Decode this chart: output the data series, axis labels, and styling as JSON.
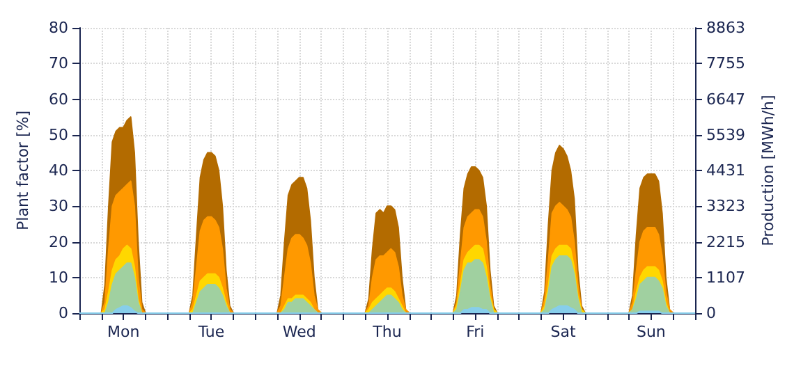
{
  "chart_data": {
    "type": "area",
    "ylabel": "Plant factor [%]",
    "y2label": "Production [MWh/h]",
    "categories": [
      null,
      null,
      null,
      null,
      null,
      null,
      null,
      null,
      null,
      null,
      null,
      null,
      "Mon",
      null,
      null,
      null,
      null,
      null,
      null,
      null,
      null,
      null,
      null,
      null,
      null,
      null,
      null,
      null,
      null,
      null,
      null,
      null,
      null,
      null,
      null,
      null,
      "Tue",
      null,
      null,
      null,
      null,
      null,
      null,
      null,
      null,
      null,
      null,
      null,
      null,
      null,
      null,
      null,
      null,
      null,
      null,
      null,
      null,
      null,
      null,
      null,
      "Wed",
      null,
      null,
      null,
      null,
      null,
      null,
      null,
      null,
      null,
      null,
      null,
      null,
      null,
      null,
      null,
      null,
      null,
      null,
      null,
      null,
      null,
      null,
      null,
      "Thu",
      null,
      null,
      null,
      null,
      null,
      null,
      null,
      null,
      null,
      null,
      null,
      null,
      null,
      null,
      null,
      null,
      null,
      null,
      null,
      null,
      null,
      null,
      null,
      "Fri",
      null,
      null,
      null,
      null,
      null,
      null,
      null,
      null,
      null,
      null,
      null,
      null,
      null,
      null,
      null,
      null,
      null,
      null,
      null,
      null,
      null,
      null,
      null,
      "Sat",
      null,
      null,
      null,
      null,
      null,
      null,
      null,
      null,
      null,
      null,
      null,
      null,
      null,
      null,
      null,
      null,
      null,
      null,
      null,
      null,
      null,
      null,
      null,
      "Sun",
      null,
      null,
      null,
      null,
      null,
      null,
      null,
      null,
      null,
      null,
      null,
      null
    ],
    "ylim": [
      0,
      80
    ],
    "yticks": [
      0,
      10,
      20,
      30,
      40,
      50,
      60,
      70,
      80
    ],
    "y2lim": [
      0,
      8863
    ],
    "y2ticks": [
      0,
      1107,
      2215,
      3323,
      4431,
      5539,
      6647,
      7755,
      8863
    ],
    "grid": true,
    "marker": "none",
    "line_style": "solid",
    "series": [
      {
        "color": "#b36b00",
        "values": [
          0,
          0,
          0,
          0,
          0,
          0,
          0,
          8,
          30,
          48,
          51,
          52,
          52,
          54,
          55,
          45,
          20,
          3,
          0,
          0,
          0,
          0,
          0,
          0,
          0,
          0,
          0,
          0,
          0,
          0,
          0,
          5,
          22,
          38,
          43,
          45,
          45,
          44,
          40,
          30,
          12,
          2,
          0,
          0,
          0,
          0,
          0,
          0,
          0,
          0,
          0,
          0,
          0,
          0,
          0,
          5,
          20,
          33,
          36,
          37,
          38,
          38,
          35,
          26,
          10,
          1,
          0,
          0,
          0,
          0,
          0,
          0,
          0,
          0,
          0,
          0,
          0,
          0,
          0,
          4,
          18,
          28,
          29,
          28,
          30,
          30,
          29,
          24,
          10,
          1,
          0,
          0,
          0,
          0,
          0,
          0,
          0,
          0,
          0,
          0,
          0,
          0,
          0,
          5,
          22,
          35,
          39,
          41,
          41,
          40,
          38,
          30,
          12,
          2,
          0,
          0,
          0,
          0,
          0,
          0,
          0,
          0,
          0,
          0,
          0,
          0,
          0,
          6,
          25,
          40,
          45,
          47,
          46,
          44,
          40,
          32,
          12,
          2,
          0,
          0,
          0,
          0,
          0,
          0,
          0,
          0,
          0,
          0,
          0,
          0,
          0,
          5,
          22,
          35,
          38,
          39,
          39,
          39,
          37,
          28,
          10,
          1,
          0,
          0,
          0,
          0,
          0,
          0,
          0
        ]
      },
      {
        "color": "#ff9900",
        "values": [
          0,
          0,
          0,
          0,
          0,
          0,
          0,
          3,
          18,
          30,
          33,
          34,
          35,
          36,
          37,
          30,
          10,
          1,
          0,
          0,
          0,
          0,
          0,
          0,
          0,
          0,
          0,
          0,
          0,
          0,
          0,
          3,
          13,
          23,
          26,
          27,
          27,
          26,
          24,
          18,
          7,
          1,
          0,
          0,
          0,
          0,
          0,
          0,
          0,
          0,
          0,
          0,
          0,
          0,
          0,
          2,
          10,
          18,
          21,
          22,
          22,
          21,
          19,
          14,
          5,
          1,
          0,
          0,
          0,
          0,
          0,
          0,
          0,
          0,
          0,
          0,
          0,
          0,
          0,
          2,
          10,
          15,
          16,
          16,
          17,
          18,
          17,
          13,
          5,
          1,
          0,
          0,
          0,
          0,
          0,
          0,
          0,
          0,
          0,
          0,
          0,
          0,
          0,
          3,
          14,
          24,
          27,
          28,
          29,
          29,
          27,
          20,
          8,
          1,
          0,
          0,
          0,
          0,
          0,
          0,
          0,
          0,
          0,
          0,
          0,
          0,
          0,
          4,
          15,
          28,
          30,
          31,
          30,
          29,
          27,
          20,
          8,
          1,
          0,
          0,
          0,
          0,
          0,
          0,
          0,
          0,
          0,
          0,
          0,
          0,
          0,
          3,
          12,
          20,
          23,
          24,
          24,
          24,
          22,
          16,
          6,
          1,
          0,
          0,
          0,
          0,
          0,
          0,
          0
        ]
      },
      {
        "color": "#ffd700",
        "values": [
          0,
          0,
          0,
          0,
          0,
          0,
          0,
          1,
          6,
          12,
          15,
          16,
          18,
          19,
          18,
          13,
          4,
          0,
          0,
          0,
          0,
          0,
          0,
          0,
          0,
          0,
          0,
          0,
          0,
          0,
          0,
          1,
          5,
          9,
          10,
          11,
          11,
          11,
          10,
          7,
          3,
          0,
          0,
          0,
          0,
          0,
          0,
          0,
          0,
          0,
          0,
          0,
          0,
          0,
          0,
          0,
          2,
          4,
          4,
          5,
          5,
          5,
          4,
          3,
          1,
          0,
          0,
          0,
          0,
          0,
          0,
          0,
          0,
          0,
          0,
          0,
          0,
          0,
          0,
          1,
          3,
          4,
          5,
          6,
          7,
          7,
          6,
          4,
          2,
          0,
          0,
          0,
          0,
          0,
          0,
          0,
          0,
          0,
          0,
          0,
          0,
          0,
          0,
          2,
          8,
          15,
          17,
          18,
          19,
          19,
          18,
          13,
          5,
          1,
          0,
          0,
          0,
          0,
          0,
          0,
          0,
          0,
          0,
          0,
          0,
          0,
          0,
          2,
          8,
          16,
          18,
          19,
          19,
          19,
          18,
          13,
          5,
          1,
          0,
          0,
          0,
          0,
          0,
          0,
          0,
          0,
          0,
          0,
          0,
          0,
          0,
          1,
          6,
          10,
          12,
          13,
          13,
          13,
          12,
          9,
          3,
          0,
          0,
          0,
          0,
          0,
          0,
          0,
          0
        ]
      },
      {
        "color": "#a0d0a0",
        "values": [
          0,
          0,
          0,
          0,
          0,
          0,
          0,
          0,
          3,
          8,
          11,
          12,
          13,
          14,
          14,
          10,
          3,
          0,
          0,
          0,
          0,
          0,
          0,
          0,
          0,
          0,
          0,
          0,
          0,
          0,
          0,
          0,
          3,
          6,
          7,
          8,
          8,
          8,
          7,
          5,
          2,
          0,
          0,
          0,
          0,
          0,
          0,
          0,
          0,
          0,
          0,
          0,
          0,
          0,
          0,
          0,
          1,
          3,
          3,
          4,
          4,
          4,
          3,
          2,
          1,
          0,
          0,
          0,
          0,
          0,
          0,
          0,
          0,
          0,
          0,
          0,
          0,
          0,
          0,
          0,
          1,
          2,
          3,
          4,
          5,
          5,
          4,
          3,
          1,
          0,
          0,
          0,
          0,
          0,
          0,
          0,
          0,
          0,
          0,
          0,
          0,
          0,
          0,
          1,
          6,
          12,
          14,
          14,
          15,
          15,
          14,
          10,
          4,
          0,
          0,
          0,
          0,
          0,
          0,
          0,
          0,
          0,
          0,
          0,
          0,
          0,
          0,
          1,
          6,
          13,
          15,
          16,
          16,
          16,
          15,
          11,
          4,
          0,
          0,
          0,
          0,
          0,
          0,
          0,
          0,
          0,
          0,
          0,
          0,
          0,
          0,
          1,
          4,
          8,
          9,
          10,
          10,
          10,
          9,
          7,
          2,
          0,
          0,
          0,
          0,
          0,
          0,
          0,
          0
        ]
      },
      {
        "color": "#87ceeb",
        "values": [
          0,
          0,
          0,
          0,
          0,
          0,
          0,
          0,
          0,
          0,
          1,
          1.5,
          2,
          2,
          1.5,
          0.5,
          0,
          0,
          0,
          0,
          0,
          0,
          0,
          0,
          0,
          0,
          0,
          0,
          0,
          0,
          0,
          0,
          0,
          0,
          0,
          0,
          0,
          0,
          0,
          0,
          0,
          0,
          0,
          0,
          0,
          0,
          0,
          0,
          0,
          0,
          0,
          0,
          0,
          0,
          0,
          0,
          0,
          0,
          0,
          0,
          0,
          0,
          0,
          0,
          0,
          0,
          0,
          0,
          0,
          0,
          0,
          0,
          0,
          0,
          0,
          0,
          0,
          0,
          0,
          0,
          0,
          0,
          0,
          0,
          0,
          0,
          0,
          0,
          0,
          0,
          0,
          0,
          0,
          0,
          0,
          0,
          0,
          0,
          0,
          0,
          0,
          0,
          0,
          0,
          0,
          1,
          1,
          1.5,
          1.5,
          1.5,
          1,
          1,
          0,
          0,
          0,
          0,
          0,
          0,
          0,
          0,
          0,
          0,
          0,
          0,
          0,
          0,
          0,
          0,
          0,
          1,
          1.5,
          2,
          2,
          2,
          1.5,
          1,
          0,
          0,
          0,
          0,
          0,
          0,
          0,
          0,
          0,
          0,
          0,
          0,
          0,
          0,
          0,
          0,
          0,
          0.5,
          0.5,
          0.5,
          0.5,
          0.5,
          0.5,
          0,
          0,
          0,
          0,
          0,
          0,
          0,
          0,
          0,
          0
        ]
      }
    ]
  }
}
